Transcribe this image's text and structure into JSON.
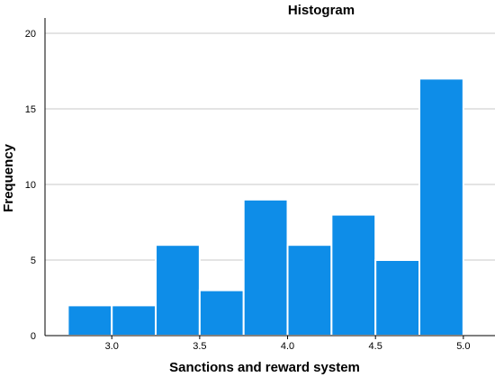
{
  "chart_data": {
    "type": "bar",
    "title": "Histogram",
    "xlabel": "Sanctions and reward system",
    "ylabel": "Frequency",
    "bins": [
      {
        "start": 2.75,
        "end": 3.0,
        "count": 2
      },
      {
        "start": 3.0,
        "end": 3.25,
        "count": 2
      },
      {
        "start": 3.25,
        "end": 3.5,
        "count": 6
      },
      {
        "start": 3.5,
        "end": 3.75,
        "count": 3
      },
      {
        "start": 3.75,
        "end": 4.0,
        "count": 9
      },
      {
        "start": 4.0,
        "end": 4.25,
        "count": 6
      },
      {
        "start": 4.25,
        "end": 4.5,
        "count": 8
      },
      {
        "start": 4.5,
        "end": 4.75,
        "count": 5
      },
      {
        "start": 4.75,
        "end": 5.0,
        "count": 17
      }
    ],
    "xticks": [
      {
        "value": 3.0,
        "label": "3.0"
      },
      {
        "value": 3.5,
        "label": "3.5"
      },
      {
        "value": 4.0,
        "label": "4.0"
      },
      {
        "value": 4.5,
        "label": "4.5"
      },
      {
        "value": 5.0,
        "label": "5.0"
      }
    ],
    "yticks": [
      {
        "value": 0,
        "label": "0"
      },
      {
        "value": 5,
        "label": "5"
      },
      {
        "value": 10,
        "label": "10"
      },
      {
        "value": 15,
        "label": "15"
      },
      {
        "value": 20,
        "label": "20"
      }
    ],
    "xlim": [
      2.62,
      5.18
    ],
    "ylim": [
      0,
      20
    ],
    "grid": "horizontal",
    "bar_color": "#0e8de8"
  }
}
